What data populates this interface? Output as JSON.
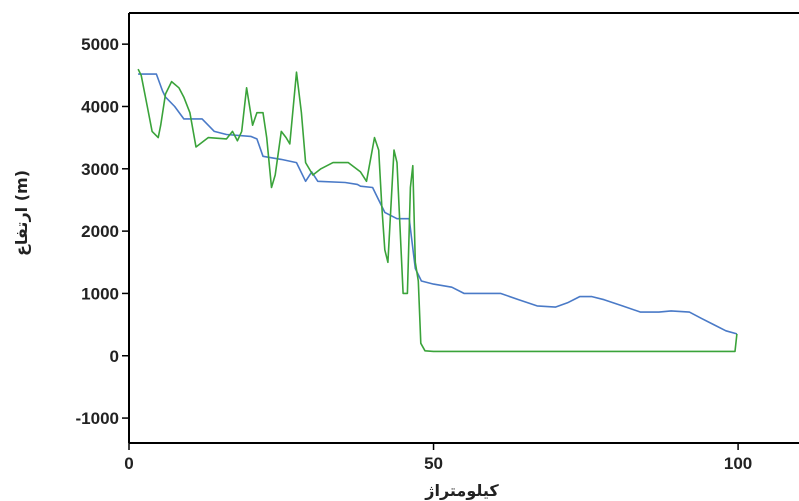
{
  "chart_data": {
    "type": "line",
    "title": "",
    "xlabel": "کیلومتراژ",
    "ylabel": "ارتفاع (m)",
    "xlim": [
      0,
      110
    ],
    "ylim": [
      -1400,
      5500
    ],
    "x_ticks": [
      0,
      50,
      100
    ],
    "y_ticks": [
      -1000,
      0,
      1000,
      2000,
      3000,
      4000,
      5000
    ],
    "grid": false,
    "legend": "none",
    "series": [
      {
        "color": "#4a7ac7",
        "points": [
          [
            1.5,
            4520
          ],
          [
            4.5,
            4520
          ],
          [
            5.5,
            4250
          ],
          [
            6,
            4150
          ],
          [
            7.5,
            4000
          ],
          [
            9,
            3800
          ],
          [
            12,
            3800
          ],
          [
            14,
            3600
          ],
          [
            16,
            3550
          ],
          [
            20,
            3520
          ],
          [
            21,
            3480
          ],
          [
            22,
            3200
          ],
          [
            25,
            3150
          ],
          [
            27.5,
            3100
          ],
          [
            29,
            2800
          ],
          [
            30,
            2950
          ],
          [
            31,
            2800
          ],
          [
            35.5,
            2780
          ],
          [
            37.5,
            2750
          ],
          [
            38,
            2720
          ],
          [
            40,
            2700
          ],
          [
            41,
            2500
          ],
          [
            42,
            2300
          ],
          [
            44,
            2200
          ],
          [
            46,
            2200
          ],
          [
            47,
            1400
          ],
          [
            48,
            1200
          ],
          [
            50,
            1150
          ],
          [
            53,
            1100
          ],
          [
            55,
            1000
          ],
          [
            58,
            1000
          ],
          [
            61,
            1000
          ],
          [
            64,
            900
          ],
          [
            67,
            800
          ],
          [
            70,
            780
          ],
          [
            72,
            850
          ],
          [
            74,
            950
          ],
          [
            76,
            950
          ],
          [
            78,
            900
          ],
          [
            81,
            800
          ],
          [
            84,
            700
          ],
          [
            87,
            700
          ],
          [
            89,
            720
          ],
          [
            92,
            700
          ],
          [
            94,
            600
          ],
          [
            96,
            500
          ],
          [
            98,
            400
          ],
          [
            99.8,
            350
          ]
        ]
      },
      {
        "color": "#3aa33a",
        "points": [
          [
            1.5,
            4600
          ],
          [
            2,
            4500
          ],
          [
            3,
            4000
          ],
          [
            3.8,
            3600
          ],
          [
            4.8,
            3500
          ],
          [
            5.2,
            3700
          ],
          [
            6,
            4200
          ],
          [
            7,
            4400
          ],
          [
            8.2,
            4300
          ],
          [
            9,
            4150
          ],
          [
            10,
            3900
          ],
          [
            11,
            3350
          ],
          [
            13,
            3500
          ],
          [
            16,
            3480
          ],
          [
            17,
            3600
          ],
          [
            17.8,
            3450
          ],
          [
            18.5,
            3600
          ],
          [
            19.3,
            4300
          ],
          [
            20.3,
            3700
          ],
          [
            21,
            3900
          ],
          [
            22,
            3900
          ],
          [
            22.6,
            3500
          ],
          [
            23.4,
            2700
          ],
          [
            24,
            2900
          ],
          [
            25,
            3600
          ],
          [
            25.8,
            3500
          ],
          [
            26.4,
            3400
          ],
          [
            27.5,
            4550
          ],
          [
            28.3,
            3900
          ],
          [
            29,
            3100
          ],
          [
            30.2,
            2900
          ],
          [
            31.5,
            3000
          ],
          [
            33.5,
            3100
          ],
          [
            36,
            3100
          ],
          [
            38,
            2950
          ],
          [
            39,
            2800
          ],
          [
            40.3,
            3500
          ],
          [
            41,
            3300
          ],
          [
            41.5,
            2400
          ],
          [
            42,
            1700
          ],
          [
            42.5,
            1500
          ],
          [
            43.5,
            3300
          ],
          [
            44,
            3100
          ],
          [
            45,
            1000
          ],
          [
            45.7,
            1000
          ],
          [
            46.2,
            2700
          ],
          [
            46.6,
            3050
          ],
          [
            47,
            1500
          ],
          [
            47.5,
            1200
          ],
          [
            47.9,
            200
          ],
          [
            48.6,
            80
          ],
          [
            50,
            70
          ],
          [
            99.5,
            70
          ],
          [
            99.8,
            350
          ]
        ]
      }
    ]
  }
}
